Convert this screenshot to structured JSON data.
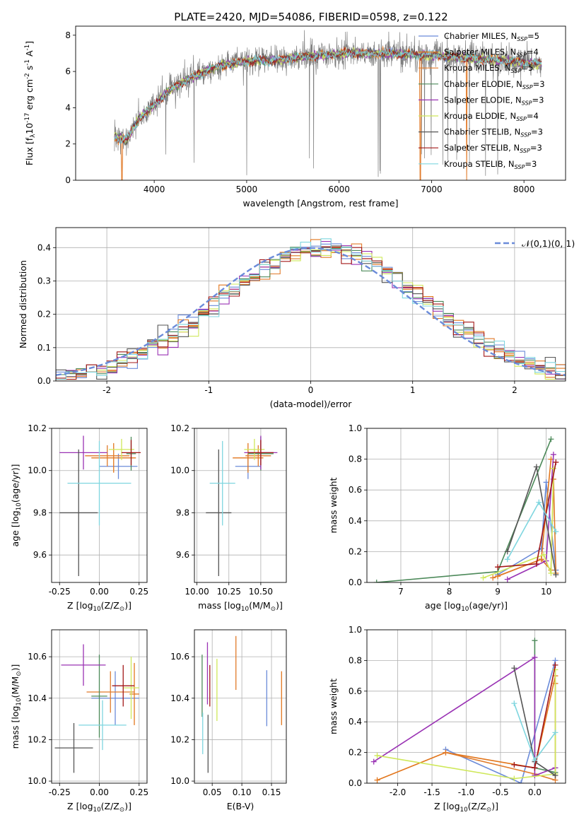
{
  "figure": {
    "title": "PLATE=2420, MJD=54086, FIBERID=0598, z=0.122"
  },
  "models": [
    {
      "name": "Chabrier MILES",
      "nssp": "5",
      "color": "#6b8bd9"
    },
    {
      "name": "Salpeter MILES",
      "nssp": "4",
      "color": "#e2761c"
    },
    {
      "name": "Kroupa MILES",
      "nssp": "5",
      "color": "#e07a2a"
    },
    {
      "name": "Chabrier ELODIE",
      "nssp": "3",
      "color": "#4d8a5a"
    },
    {
      "name": "Salpeter ELODIE",
      "nssp": "3",
      "color": "#9a33b4"
    },
    {
      "name": "Kroupa ELODIE",
      "nssp": "4",
      "color": "#cfe85a"
    },
    {
      "name": "Chabrier STELIB",
      "nssp": "3",
      "color": "#555555"
    },
    {
      "name": "Salpeter STELIB",
      "nssp": "3",
      "color": "#a31818"
    },
    {
      "name": "Kroupa STELIB",
      "nssp": "3",
      "color": "#7fd6df"
    }
  ],
  "chart_data": [
    {
      "id": "spectrum",
      "type": "line",
      "xlabel": "wavelength [Angstrom, rest frame]",
      "ylabel": "Flux [f$_\\lambda$10$^{-17}$ erg cm$^{-2}$ s$^{-1}$ A$^{-1}$]",
      "xlim": [
        3150,
        8450
      ],
      "ylim": [
        0,
        8.5
      ],
      "xticks": [
        4000,
        5000,
        6000,
        7000,
        8000
      ],
      "yticks": [
        0,
        2,
        4,
        6,
        8
      ],
      "data_range": [
        3570,
        8190
      ],
      "continuum": {
        "x": [
          3570,
          3700,
          3850,
          3950,
          4050,
          4150,
          4300,
          4500,
          4700,
          4900,
          5100,
          5300,
          5500,
          5800,
          6100,
          6500,
          7000,
          7500,
          8000,
          8190
        ],
        "y": [
          2.4,
          2.2,
          3.5,
          3.9,
          4.4,
          4.9,
          5.4,
          5.9,
          6.3,
          6.5,
          6.6,
          6.6,
          6.75,
          6.9,
          7.0,
          7.0,
          6.9,
          6.7,
          6.5,
          6.4
        ]
      },
      "legend_position": "upper right"
    },
    {
      "id": "residual_histogram",
      "type": "histogram",
      "xlabel": "(data-model)/error",
      "ylabel": "Normed distribution",
      "xlim": [
        -2.5,
        2.5
      ],
      "ylim": [
        0,
        0.46
      ],
      "xticks": [
        -2,
        -1,
        0,
        1,
        2
      ],
      "yticks": [
        0.0,
        0.1,
        0.2,
        0.3,
        0.4
      ],
      "bin_width": 0.1,
      "reference_curve": {
        "label": "$\\mathcal{N}(0,1)$",
        "style": "dashed",
        "color": "#6b8bd9"
      },
      "grid": true
    },
    {
      "id": "age_vs_Z",
      "type": "errorbar",
      "xlabel": "Z [log$_{10}$(Z/Z$_\\odot$)]",
      "ylabel": "age  [log$_{10}$(age/yr)]",
      "xlim": [
        -0.3,
        0.3
      ],
      "ylim": [
        9.47,
        10.2
      ],
      "xticks": [
        -0.25,
        0.0,
        0.25
      ],
      "yticks": [
        9.6,
        9.8,
        10.0,
        10.2
      ],
      "points": [
        {
          "x": 0.12,
          "xerr": 0.12,
          "y": 10.02,
          "yerr": 0.06
        },
        {
          "x": 0.09,
          "xerr": 0.14,
          "y": 10.06,
          "yerr": 0.07
        },
        {
          "x": 0.05,
          "xerr": 0.14,
          "y": 10.07,
          "yerr": 0.05
        },
        {
          "x": 0.2,
          "xerr": 0.03,
          "y": 10.08,
          "yerr": 0.08
        },
        {
          "x": -0.1,
          "xerr": 0.15,
          "y": 10.085,
          "yerr": 0.08
        },
        {
          "x": 0.14,
          "xerr": 0.08,
          "y": 10.1,
          "yerr": 0.05
        },
        {
          "x": -0.13,
          "xerr": 0.12,
          "y": 9.8,
          "yerr": 0.3
        },
        {
          "x": 0.2,
          "xerr": 0.06,
          "y": 10.085,
          "yerr": 0.06
        },
        {
          "x": 0.0,
          "xerr": 0.2,
          "y": 9.94,
          "yerr": 0.2
        }
      ]
    },
    {
      "id": "age_vs_mass",
      "type": "errorbar",
      "xlabel": "mass [log$_{10}$(M/M$_\\odot$)]",
      "ylabel": "",
      "xlim": [
        9.98,
        10.7
      ],
      "ylim": [
        9.47,
        10.2
      ],
      "xticks": [
        10.0,
        10.25,
        10.5
      ],
      "yticks": [
        9.6,
        9.8,
        10.0,
        10.2
      ],
      "points": [
        {
          "x": 10.4,
          "xerr": 0.1,
          "y": 10.02,
          "yerr": 0.06
        },
        {
          "x": 10.4,
          "xerr": 0.12,
          "y": 10.06,
          "yerr": 0.07
        },
        {
          "x": 10.48,
          "xerr": 0.1,
          "y": 10.07,
          "yerr": 0.05
        },
        {
          "x": 10.5,
          "xerr": 0.1,
          "y": 10.08,
          "yerr": 0.08
        },
        {
          "x": 10.5,
          "xerr": 0.13,
          "y": 10.085,
          "yerr": 0.08
        },
        {
          "x": 10.45,
          "xerr": 0.08,
          "y": 10.1,
          "yerr": 0.05
        },
        {
          "x": 10.17,
          "xerr": 0.1,
          "y": 9.8,
          "yerr": 0.3
        },
        {
          "x": 10.5,
          "xerr": 0.1,
          "y": 10.085,
          "yerr": 0.06
        },
        {
          "x": 10.2,
          "xerr": 0.1,
          "y": 9.94,
          "yerr": 0.2
        }
      ]
    },
    {
      "id": "massweight_vs_age",
      "type": "line",
      "xlabel": "age  [log$_{10}$(age/yr)]",
      "ylabel": "mass weight",
      "xlim": [
        6.3,
        10.4
      ],
      "ylim": [
        0,
        1
      ],
      "xticks": [
        7,
        8,
        9,
        10
      ],
      "yticks": [
        0.0,
        0.2,
        0.4,
        0.6,
        0.8,
        1.0
      ],
      "series": [
        {
          "x": [
            9.0,
            9.9,
            10.0,
            10.2
          ],
          "y": [
            0.05,
            0.22,
            0.65,
            0.08
          ]
        },
        {
          "x": [
            9.0,
            9.9,
            10.1
          ],
          "y": [
            0.04,
            0.15,
            0.8
          ]
        },
        {
          "x": [
            8.9,
            9.9,
            10.1,
            10.15,
            10.2
          ],
          "y": [
            0.03,
            0.15,
            0.08,
            0.67,
            0.06
          ]
        },
        {
          "x": [
            6.5,
            9.0,
            10.1
          ],
          "y": [
            0.0,
            0.07,
            0.93
          ]
        },
        {
          "x": [
            9.2,
            10.0,
            10.15
          ],
          "y": [
            0.02,
            0.14,
            0.83
          ]
        },
        {
          "x": [
            8.7,
            9.95,
            10.1,
            10.15
          ],
          "y": [
            0.03,
            0.18,
            0.06,
            0.74
          ]
        },
        {
          "x": [
            9.2,
            9.8,
            10.2
          ],
          "y": [
            0.2,
            0.75,
            0.05
          ]
        },
        {
          "x": [
            9.0,
            9.8,
            10.2
          ],
          "y": [
            0.1,
            0.12,
            0.78
          ]
        },
        {
          "x": [
            9.2,
            9.85,
            10.2
          ],
          "y": [
            0.15,
            0.52,
            0.33
          ]
        }
      ]
    },
    {
      "id": "mass_vs_Z",
      "type": "errorbar",
      "xlabel": "Z [log$_{10}$(Z/Z$_\\odot$)]",
      "ylabel": "mass [log$_{10}$(M/M$_\\odot$)]",
      "xlim": [
        -0.3,
        0.3
      ],
      "ylim": [
        9.99,
        10.73
      ],
      "xticks": [
        -0.25,
        0.0,
        0.25
      ],
      "yticks": [
        10.0,
        10.2,
        10.4,
        10.6
      ],
      "points": [
        {
          "x": 0.1,
          "xerr": 0.15,
          "y": 10.4,
          "yerr": 0.13
        },
        {
          "x": 0.22,
          "xerr": 0.03,
          "y": 10.42,
          "yerr": 0.15
        },
        {
          "x": 0.07,
          "xerr": 0.15,
          "y": 10.43,
          "yerr": 0.1
        },
        {
          "x": 0.0,
          "xerr": 0.05,
          "y": 10.41,
          "yerr": 0.2
        },
        {
          "x": -0.1,
          "xerr": 0.14,
          "y": 10.56,
          "yerr": 0.1
        },
        {
          "x": 0.2,
          "xerr": 0.05,
          "y": 10.45,
          "yerr": 0.15
        },
        {
          "x": -0.16,
          "xerr": 0.12,
          "y": 10.16,
          "yerr": 0.12
        },
        {
          "x": 0.15,
          "xerr": 0.07,
          "y": 10.46,
          "yerr": 0.1
        },
        {
          "x": 0.02,
          "xerr": 0.15,
          "y": 10.27,
          "yerr": 0.12
        }
      ]
    },
    {
      "id": "mass_vs_ebv",
      "type": "errorbar",
      "xlabel": "E(B-V)",
      "ylabel": "",
      "xlim": [
        0.02,
        0.175
      ],
      "ylim": [
        9.99,
        10.73
      ],
      "xticks": [
        0.05,
        0.1,
        0.15
      ],
      "yticks": [
        10.0,
        10.2,
        10.4,
        10.6
      ],
      "points": [
        {
          "x": 0.142,
          "y": 10.4,
          "yerr": 0.135
        },
        {
          "x": 0.167,
          "y": 10.4,
          "yerr": 0.13
        },
        {
          "x": 0.09,
          "y": 10.57,
          "yerr": 0.13
        },
        {
          "x": 0.033,
          "y": 10.46,
          "yerr": 0.15
        },
        {
          "x": 0.042,
          "y": 10.52,
          "yerr": 0.15
        },
        {
          "x": 0.058,
          "y": 10.44,
          "yerr": 0.15
        },
        {
          "x": 0.043,
          "y": 10.18,
          "yerr": 0.14
        },
        {
          "x": 0.046,
          "y": 10.46,
          "yerr": 0.1
        },
        {
          "x": 0.034,
          "y": 10.23,
          "yerr": 0.1
        }
      ]
    },
    {
      "id": "massweight_vs_Z",
      "type": "line",
      "xlabel": "Z [log$_{10}$(Z/Z$_\\odot$)]",
      "ylabel": "mass weight",
      "xlim": [
        -2.45,
        0.45
      ],
      "ylim": [
        0,
        1
      ],
      "xticks": [
        -2.0,
        -1.5,
        -1.0,
        -0.5,
        0.0
      ],
      "yticks": [
        0.0,
        0.2,
        0.4,
        0.6,
        0.8,
        1.0
      ],
      "series": [
        {
          "x": [
            -1.3,
            -0.2,
            0.3
          ],
          "y": [
            0.22,
            0.0,
            0.8
          ]
        },
        {
          "x": [
            -2.3,
            -1.3,
            0.0,
            0.3
          ],
          "y": [
            0.02,
            0.2,
            0.1,
            0.7
          ]
        },
        {
          "x": [
            -1.3,
            0.0,
            0.3,
            0.3
          ],
          "y": [
            0.2,
            0.06,
            0.02,
            0.65
          ]
        },
        {
          "x": [
            0.0,
            0.0,
            0.3
          ],
          "y": [
            0.93,
            0.1,
            0.07
          ]
        },
        {
          "x": [
            -2.35,
            0.0,
            0.0,
            0.3
          ],
          "y": [
            0.14,
            0.82,
            0.05,
            0.1
          ]
        },
        {
          "x": [
            -2.3,
            -0.3,
            0.3,
            0.3
          ],
          "y": [
            0.18,
            0.03,
            0.06,
            0.74
          ]
        },
        {
          "x": [
            -0.3,
            0.0,
            0.3
          ],
          "y": [
            0.75,
            0.14,
            0.05
          ]
        },
        {
          "x": [
            -0.3,
            0.0,
            0.3
          ],
          "y": [
            0.12,
            0.1,
            0.77
          ]
        },
        {
          "x": [
            -0.3,
            0.0,
            0.3
          ],
          "y": [
            0.52,
            0.15,
            0.33
          ]
        }
      ]
    }
  ]
}
